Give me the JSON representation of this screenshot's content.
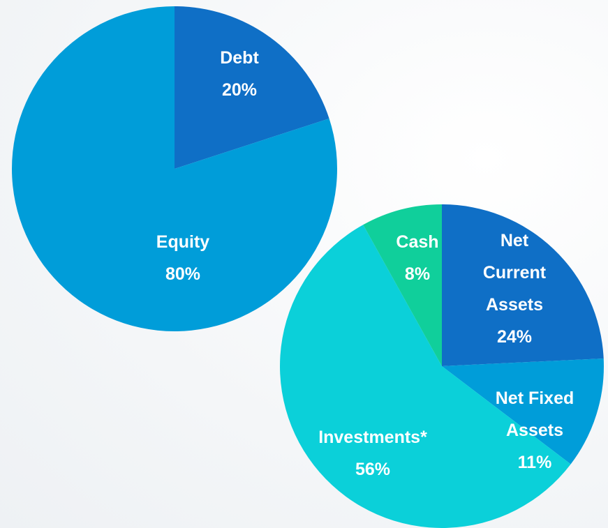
{
  "chart_data": [
    {
      "type": "pie",
      "categories": [
        "Debt",
        "Equity"
      ],
      "values": [
        20,
        80
      ],
      "value_labels": [
        "20%",
        "80%"
      ],
      "colors": [
        "#0f6fc6",
        "#009dd9"
      ]
    },
    {
      "type": "pie",
      "categories": [
        "Net Current Assets",
        "Net Fixed Assets",
        "Investments*",
        "Cash"
      ],
      "values": [
        24,
        11,
        56,
        8
      ],
      "value_labels": [
        "24%",
        "11%",
        "56%",
        "8%"
      ],
      "colors": [
        "#0f6fc6",
        "#009dd9",
        "#0bd0d9",
        "#10cf9b"
      ]
    }
  ]
}
